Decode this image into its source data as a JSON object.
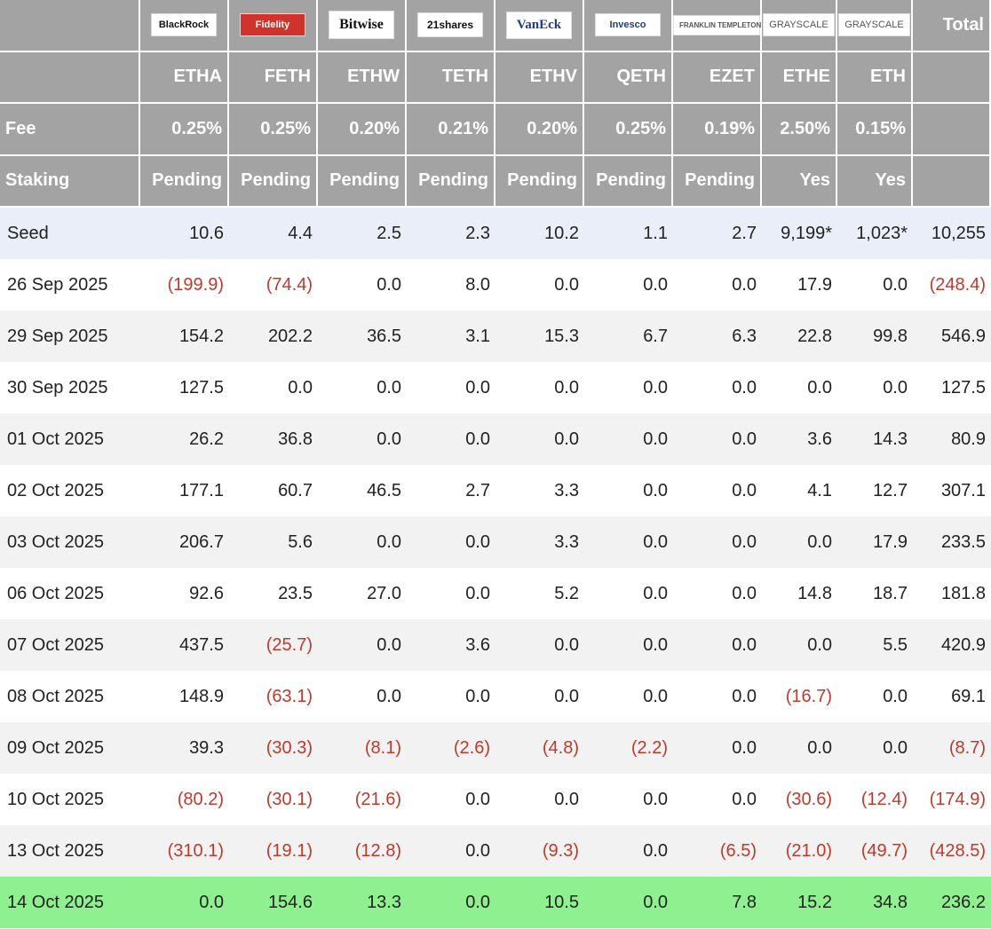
{
  "header": {
    "logos": [
      "BlackRock",
      "Fidelity",
      "Bitwise",
      "21shares",
      "VanEck",
      "Invesco",
      "FRANKLIN TEMPLETON",
      "GRAYSCALE",
      "GRAYSCALE"
    ],
    "total": "Total",
    "tickers": [
      "ETHA",
      "FETH",
      "ETHW",
      "TETH",
      "ETHV",
      "QETH",
      "EZET",
      "ETHE",
      "ETH"
    ],
    "fee_label": "Fee",
    "fees": [
      "0.25%",
      "0.25%",
      "0.20%",
      "0.21%",
      "0.20%",
      "0.25%",
      "0.19%",
      "2.50%",
      "0.15%"
    ],
    "staking_label": "Staking",
    "staking": [
      "Pending",
      "Pending",
      "Pending",
      "Pending",
      "Pending",
      "Pending",
      "Pending",
      "Yes",
      "Yes"
    ]
  },
  "table": {
    "rows": [
      [
        "Seed",
        "10.6",
        "4.4",
        "2.5",
        "2.3",
        "10.2",
        "1.1",
        "2.7",
        "9,199*",
        "1,023*",
        "10,255"
      ],
      [
        "26 Sep 2025",
        "(199.9)",
        "(74.4)",
        "0.0",
        "8.0",
        "0.0",
        "0.0",
        "0.0",
        "17.9",
        "0.0",
        "(248.4)"
      ],
      [
        "29 Sep 2025",
        "154.2",
        "202.2",
        "36.5",
        "3.1",
        "15.3",
        "6.7",
        "6.3",
        "22.8",
        "99.8",
        "546.9"
      ],
      [
        "30 Sep 2025",
        "127.5",
        "0.0",
        "0.0",
        "0.0",
        "0.0",
        "0.0",
        "0.0",
        "0.0",
        "0.0",
        "127.5"
      ],
      [
        "01 Oct 2025",
        "26.2",
        "36.8",
        "0.0",
        "0.0",
        "0.0",
        "0.0",
        "0.0",
        "3.6",
        "14.3",
        "80.9"
      ],
      [
        "02 Oct 2025",
        "177.1",
        "60.7",
        "46.5",
        "2.7",
        "3.3",
        "0.0",
        "0.0",
        "4.1",
        "12.7",
        "307.1"
      ],
      [
        "03 Oct 2025",
        "206.7",
        "5.6",
        "0.0",
        "0.0",
        "3.3",
        "0.0",
        "0.0",
        "0.0",
        "17.9",
        "233.5"
      ],
      [
        "06 Oct 2025",
        "92.6",
        "23.5",
        "27.0",
        "0.0",
        "5.2",
        "0.0",
        "0.0",
        "14.8",
        "18.7",
        "181.8"
      ],
      [
        "07 Oct 2025",
        "437.5",
        "(25.7)",
        "0.0",
        "3.6",
        "0.0",
        "0.0",
        "0.0",
        "0.0",
        "5.5",
        "420.9"
      ],
      [
        "08 Oct 2025",
        "148.9",
        "(63.1)",
        "0.0",
        "0.0",
        "0.0",
        "0.0",
        "0.0",
        "(16.7)",
        "0.0",
        "69.1"
      ],
      [
        "09 Oct 2025",
        "39.3",
        "(30.3)",
        "(8.1)",
        "(2.6)",
        "(4.8)",
        "(2.2)",
        "0.0",
        "0.0",
        "0.0",
        "(8.7)"
      ],
      [
        "10 Oct 2025",
        "(80.2)",
        "(30.1)",
        "(21.6)",
        "0.0",
        "0.0",
        "0.0",
        "0.0",
        "(30.6)",
        "(12.4)",
        "(174.9)"
      ],
      [
        "13 Oct 2025",
        "(310.1)",
        "(19.1)",
        "(12.8)",
        "0.0",
        "(9.3)",
        "0.0",
        "(6.5)",
        "(21.0)",
        "(49.7)",
        "(428.5)"
      ],
      [
        "14 Oct 2025",
        "0.0",
        "154.6",
        "13.3",
        "0.0",
        "10.5",
        "0.0",
        "7.8",
        "15.2",
        "34.8",
        "236.2"
      ]
    ]
  }
}
